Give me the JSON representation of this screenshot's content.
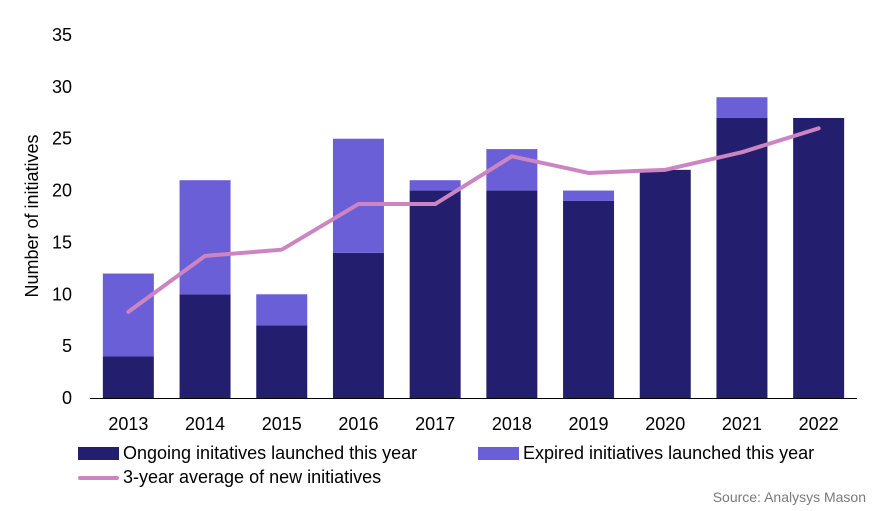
{
  "chart_data": {
    "type": "bar",
    "stacked": true,
    "categories": [
      "2013",
      "2014",
      "2015",
      "2016",
      "2017",
      "2018",
      "2019",
      "2020",
      "2021",
      "2022"
    ],
    "series": [
      {
        "name": "Ongoing initatives launched this year",
        "type": "bar",
        "color": "#231f6e",
        "values": [
          4,
          10,
          7,
          14,
          20,
          20,
          19,
          22,
          27,
          27
        ]
      },
      {
        "name": "Expired initiatives launched this year",
        "type": "bar",
        "color": "#6a5fd6",
        "values": [
          8,
          11,
          3,
          11,
          1,
          4,
          1,
          0,
          2,
          0
        ]
      },
      {
        "name": "3-year average of new initiatives",
        "type": "line",
        "color": "#cc85c2",
        "values": [
          8.3,
          13.7,
          14.3,
          18.7,
          18.7,
          23.3,
          21.7,
          22.0,
          23.7,
          26.0
        ]
      }
    ],
    "ylabel": "Number of initiatives",
    "xlabel": "",
    "ylim": [
      0,
      35
    ],
    "yticks": [
      0,
      5,
      10,
      15,
      20,
      25,
      30,
      35
    ],
    "grid": false,
    "legend_position": "bottom"
  },
  "source": "Source: Analysys Mason"
}
